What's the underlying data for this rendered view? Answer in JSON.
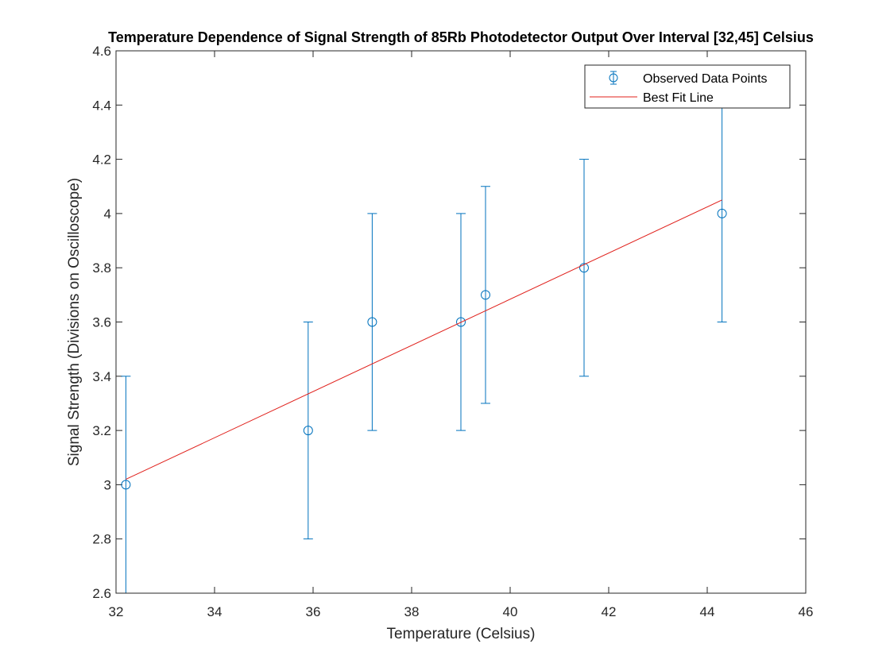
{
  "chart_data": {
    "type": "scatter",
    "title": "Temperature Dependence of Signal Strength of 85Rb Photodetector Output Over Interval [32,45] Celsius",
    "xlabel": "Temperature (Celsius)",
    "ylabel": "Signal Strength (Divisions on Oscilloscope)",
    "xlim": [
      32,
      46
    ],
    "ylim": [
      2.6,
      4.6
    ],
    "xticks": [
      "32",
      "34",
      "36",
      "38",
      "40",
      "42",
      "44",
      "46"
    ],
    "yticks": [
      "2.6",
      "2.8",
      "3",
      "3.2",
      "3.4",
      "3.6",
      "3.8",
      "4",
      "4.2",
      "4.4",
      "4.6"
    ],
    "grid": false,
    "legend_position": "top-right",
    "series": [
      {
        "name": "Observed Data Points",
        "kind": "errorbar",
        "color": "#0072BD",
        "x": [
          32.2,
          35.9,
          37.2,
          39.0,
          39.5,
          41.5,
          44.3
        ],
        "y": [
          3.0,
          3.2,
          3.6,
          3.6,
          3.7,
          3.8,
          4.0
        ],
        "error": [
          0.4,
          0.4,
          0.4,
          0.4,
          0.4,
          0.4,
          0.4
        ]
      },
      {
        "name": "Best Fit Line",
        "kind": "line",
        "color": "#E0201B",
        "x": [
          32.2,
          44.3
        ],
        "y": [
          3.02,
          4.05
        ]
      }
    ]
  }
}
